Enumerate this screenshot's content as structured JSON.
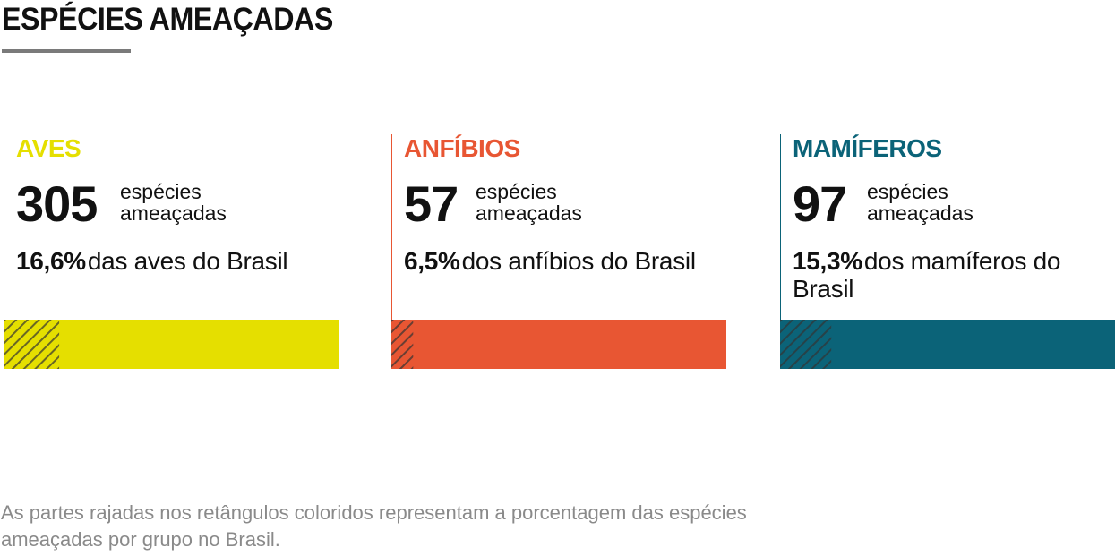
{
  "title": "ESPÉCIES AMEAÇADAS",
  "footnote": "As partes rajadas nos retângulos coloridos representam a porcentagem das espécies ameaçadas por grupo no Brasil.",
  "chart_data": {
    "type": "bar",
    "title": "ESPÉCIES AMEAÇADAS",
    "groups": [
      {
        "name": "AVES",
        "count": "305",
        "count_label": "espécies ameaçadas",
        "percent_text": "16,6%",
        "percent_label": "das aves do Brasil",
        "percent": 16.6,
        "color": "#e5df00"
      },
      {
        "name": "ANFÍBIOS",
        "count": "57",
        "count_label": "espécies ameaçadas",
        "percent_text": "6,5%",
        "percent_label": "dos anfíbios do Brasil",
        "percent": 6.5,
        "color": "#e85633"
      },
      {
        "name": "MAMÍFEROS",
        "count": "97",
        "count_label": "espécies ameaçadas",
        "percent_text": "15,3%",
        "percent_label": "dos mamíferos do Brasil",
        "percent": 15.3,
        "color": "#0b6378"
      }
    ],
    "hatch_color": "#333333"
  }
}
